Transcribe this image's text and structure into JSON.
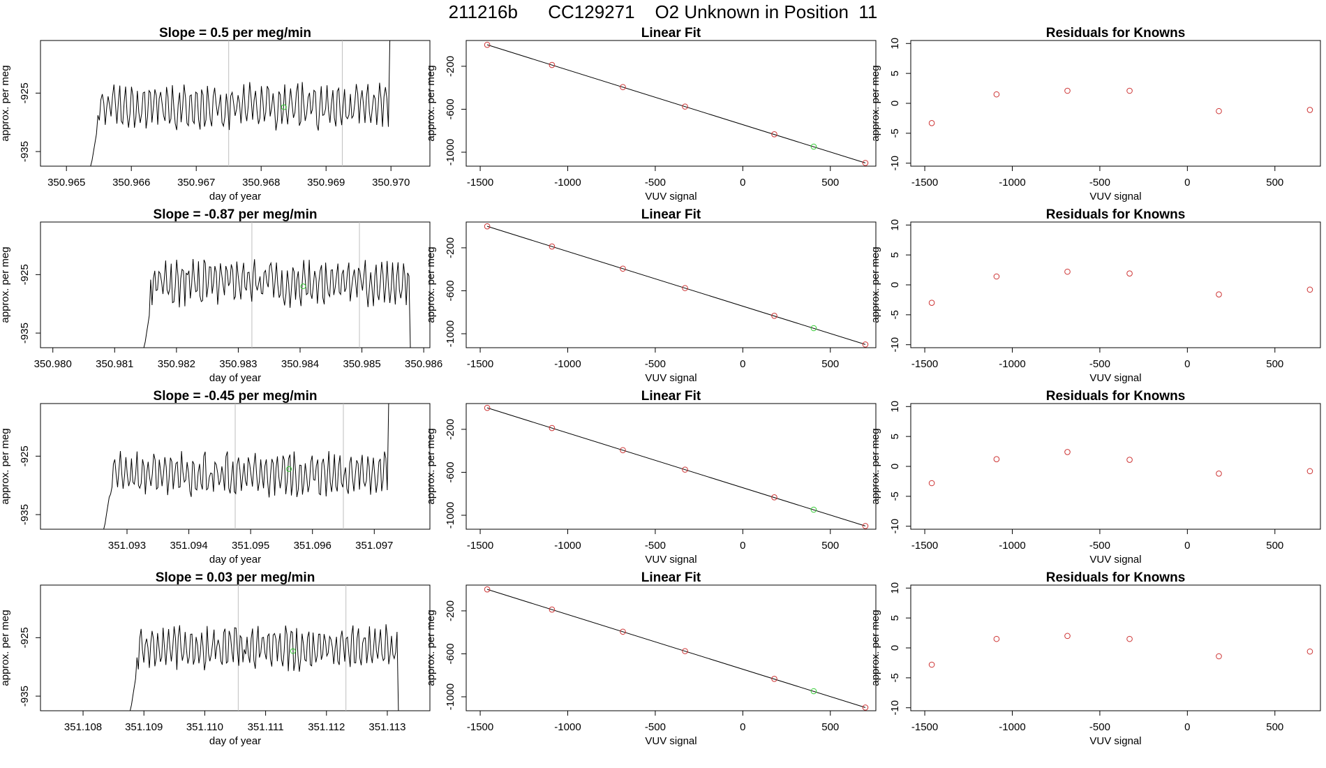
{
  "figure_title": "211216b      CC129271    O2 Unknown in Position  11",
  "colors": {
    "line": "#000000",
    "known_point": "#cd3333",
    "unknown_point": "#33cc33",
    "vline": "#bebebe"
  },
  "chart_data": [
    {
      "type": "line",
      "title": "Slope =  0.5  per meg/min",
      "xlabel": "day of year",
      "ylabel": "approx. per meg",
      "xlim": [
        350.9646,
        350.9706
      ],
      "ylim": [
        -937.5,
        -916
      ],
      "xticks": [
        350.965,
        350.966,
        350.967,
        350.968,
        350.969,
        350.97
      ],
      "xtick_labels": [
        "350.965",
        "350.966",
        "350.967",
        "350.968",
        "350.969",
        "350.970"
      ],
      "yticks": [
        -925,
        -935
      ],
      "ytick_labels": [
        "-925",
        "-935"
      ],
      "vlines": [
        350.9675,
        350.96925
      ],
      "series_start": 350.96535,
      "series_end": 350.97005,
      "series_points": 210,
      "seed": 11,
      "base_level": -927.3,
      "amplitude": 3.2,
      "green_point": [
        350.96835,
        -927.4
      ]
    },
    {
      "type": "scatter",
      "title": "Linear Fit",
      "xlabel": "VUV signal",
      "ylabel": "approx. per meg",
      "xlim": [
        -1580,
        760
      ],
      "ylim": [
        -1130,
        40
      ],
      "xticks": [
        -1500,
        -1000,
        -500,
        0,
        500
      ],
      "xtick_labels": [
        "-1500",
        "-1000",
        "-500",
        "0",
        "500"
      ],
      "yticks": [
        -200,
        -600,
        -1000
      ],
      "ytick_labels": [
        "-200",
        "-600",
        "-1000"
      ],
      "fit_line": [
        [
          -1460,
          0
        ],
        [
          700,
          -1100
        ]
      ],
      "known_points": [
        [
          -1460,
          0
        ],
        [
          -1090,
          -188
        ],
        [
          -685,
          -394
        ],
        [
          -330,
          -575
        ],
        [
          180,
          -833
        ],
        [
          700,
          -1100
        ]
      ],
      "unknown_point": [
        405,
        -948
      ]
    },
    {
      "type": "scatter",
      "title": "Residuals for Knowns",
      "xlabel": "VUV signal",
      "ylabel": "approx. per meg",
      "xlim": [
        -1580,
        760
      ],
      "ylim": [
        -10.5,
        10.5
      ],
      "xticks": [
        -1500,
        -1000,
        -500,
        0,
        500
      ],
      "xtick_labels": [
        "-1500",
        "-1000",
        "-500",
        "0",
        "500"
      ],
      "yticks": [
        10,
        5,
        0,
        -5,
        -10
      ],
      "ytick_labels": [
        "10",
        "5",
        "0",
        "-5",
        "-10"
      ],
      "points": [
        [
          -1460,
          -3.3
        ],
        [
          -1090,
          1.5
        ],
        [
          -685,
          2.1
        ],
        [
          -330,
          2.1
        ],
        [
          180,
          -1.3
        ],
        [
          700,
          -1.1
        ]
      ]
    },
    {
      "type": "line",
      "title": "Slope =  -0.87  per meg/min",
      "xlabel": "day of year",
      "ylabel": "approx. per meg",
      "xlim": [
        350.9798,
        350.9861
      ],
      "ylim": [
        -937.5,
        -916
      ],
      "xticks": [
        350.98,
        350.981,
        350.982,
        350.983,
        350.984,
        350.985,
        350.986
      ],
      "xtick_labels": [
        "350.980",
        "350.981",
        "350.982",
        "350.983",
        "350.984",
        "350.985",
        "350.986"
      ],
      "yticks": [
        -925,
        -935
      ],
      "ytick_labels": [
        "-925",
        "-935"
      ],
      "vlines": [
        350.98322,
        350.98496
      ],
      "series_start": 350.98145,
      "series_end": 350.98585,
      "series_points": 200,
      "seed": 23,
      "base_level": -926.5,
      "amplitude": 3.2,
      "green_point": [
        350.98405,
        -927.0
      ]
    },
    {
      "type": "scatter",
      "title": "Linear Fit",
      "xlabel": "VUV signal",
      "ylabel": "approx. per meg",
      "xlim": [
        -1580,
        760
      ],
      "ylim": [
        -1130,
        40
      ],
      "xticks": [
        -1500,
        -1000,
        -500,
        0,
        500
      ],
      "xtick_labels": [
        "-1500",
        "-1000",
        "-500",
        "0",
        "500"
      ],
      "yticks": [
        -200,
        -600,
        -1000
      ],
      "ytick_labels": [
        "-200",
        "-600",
        "-1000"
      ],
      "fit_line": [
        [
          -1460,
          0
        ],
        [
          700,
          -1100
        ]
      ],
      "known_points": [
        [
          -1460,
          0
        ],
        [
          -1090,
          -188
        ],
        [
          -685,
          -394
        ],
        [
          -330,
          -575
        ],
        [
          180,
          -833
        ],
        [
          700,
          -1100
        ]
      ],
      "unknown_point": [
        405,
        -948
      ]
    },
    {
      "type": "scatter",
      "title": "Residuals for Knowns",
      "xlabel": "VUV signal",
      "ylabel": "approx. per meg",
      "xlim": [
        -1580,
        760
      ],
      "ylim": [
        -10.5,
        10.5
      ],
      "xticks": [
        -1500,
        -1000,
        -500,
        0,
        500
      ],
      "xtick_labels": [
        "-1500",
        "-1000",
        "-500",
        "0",
        "500"
      ],
      "yticks": [
        10,
        5,
        0,
        -5,
        -10
      ],
      "ytick_labels": [
        "10",
        "5",
        "0",
        "-5",
        "-10"
      ],
      "points": [
        [
          -1460,
          -3.0
        ],
        [
          -1090,
          1.4
        ],
        [
          -685,
          2.2
        ],
        [
          -330,
          1.9
        ],
        [
          180,
          -1.6
        ],
        [
          700,
          -0.8
        ]
      ]
    },
    {
      "type": "line",
      "title": "Slope =  -0.45  per meg/min",
      "xlabel": "day of year",
      "ylabel": "approx. per meg",
      "xlim": [
        351.0916,
        351.0979
      ],
      "ylim": [
        -937.5,
        -916
      ],
      "xticks": [
        351.093,
        351.094,
        351.095,
        351.096,
        351.097
      ],
      "xtick_labels": [
        "351.093",
        "351.094",
        "351.095",
        "351.096",
        "351.097"
      ],
      "yticks": [
        -925,
        -935
      ],
      "ytick_labels": [
        "-925",
        "-935"
      ],
      "vlines": [
        351.09475,
        351.0965
      ],
      "series_start": 351.0926,
      "series_end": 351.0973,
      "series_points": 210,
      "seed": 37,
      "base_level": -928.2,
      "amplitude": 3.0,
      "green_point": [
        351.09562,
        -927.2
      ]
    },
    {
      "type": "scatter",
      "title": "Linear Fit",
      "xlabel": "VUV signal",
      "ylabel": "approx. per meg",
      "xlim": [
        -1580,
        760
      ],
      "ylim": [
        -1130,
        40
      ],
      "xticks": [
        -1500,
        -1000,
        -500,
        0,
        500
      ],
      "xtick_labels": [
        "-1500",
        "-1000",
        "-500",
        "0",
        "500"
      ],
      "yticks": [
        -200,
        -600,
        -1000
      ],
      "ytick_labels": [
        "-200",
        "-600",
        "-1000"
      ],
      "fit_line": [
        [
          -1460,
          0
        ],
        [
          700,
          -1100
        ]
      ],
      "known_points": [
        [
          -1460,
          0
        ],
        [
          -1090,
          -188
        ],
        [
          -685,
          -394
        ],
        [
          -330,
          -575
        ],
        [
          180,
          -833
        ],
        [
          700,
          -1100
        ]
      ],
      "unknown_point": [
        405,
        -948
      ]
    },
    {
      "type": "scatter",
      "title": "Residuals for Knowns",
      "xlabel": "VUV signal",
      "ylabel": "approx. per meg",
      "xlim": [
        -1580,
        760
      ],
      "ylim": [
        -10.5,
        10.5
      ],
      "xticks": [
        -1500,
        -1000,
        -500,
        0,
        500
      ],
      "xtick_labels": [
        "-1500",
        "-1000",
        "-500",
        "0",
        "500"
      ],
      "yticks": [
        10,
        5,
        0,
        -5,
        -10
      ],
      "ytick_labels": [
        "10",
        "5",
        "0",
        "-5",
        "-10"
      ],
      "points": [
        [
          -1460,
          -2.8
        ],
        [
          -1090,
          1.2
        ],
        [
          -685,
          2.4
        ],
        [
          -330,
          1.1
        ],
        [
          180,
          -1.2
        ],
        [
          700,
          -0.8
        ]
      ]
    },
    {
      "type": "line",
      "title": "Slope =  0.03  per meg/min",
      "xlabel": "day of year",
      "ylabel": "approx. per meg",
      "xlim": [
        351.1073,
        351.1137
      ],
      "ylim": [
        -937.5,
        -916
      ],
      "xticks": [
        351.108,
        351.109,
        351.11,
        351.111,
        351.112,
        351.113
      ],
      "xtick_labels": [
        "351.108",
        "351.109",
        "351.110",
        "351.111",
        "351.112",
        "351.113"
      ],
      "yticks": [
        -925,
        -935
      ],
      "ytick_labels": [
        "-925",
        "-935"
      ],
      "vlines": [
        351.11055,
        351.11232
      ],
      "series_start": 351.10875,
      "series_end": 351.11325,
      "series_points": 200,
      "seed": 53,
      "base_level": -926.8,
      "amplitude": 3.0,
      "green_point": [
        351.11145,
        -927.3
      ]
    },
    {
      "type": "scatter",
      "title": "Linear Fit",
      "xlabel": "VUV signal",
      "ylabel": "approx. per meg",
      "xlim": [
        -1580,
        760
      ],
      "ylim": [
        -1130,
        40
      ],
      "xticks": [
        -1500,
        -1000,
        -500,
        0,
        500
      ],
      "xtick_labels": [
        "-1500",
        "-1000",
        "-500",
        "0",
        "500"
      ],
      "yticks": [
        -200,
        -600,
        -1000
      ],
      "ytick_labels": [
        "-200",
        "-600",
        "-1000"
      ],
      "fit_line": [
        [
          -1460,
          0
        ],
        [
          700,
          -1100
        ]
      ],
      "known_points": [
        [
          -1460,
          0
        ],
        [
          -1090,
          -188
        ],
        [
          -685,
          -394
        ],
        [
          -330,
          -575
        ],
        [
          180,
          -833
        ],
        [
          700,
          -1100
        ]
      ],
      "unknown_point": [
        405,
        -948
      ]
    },
    {
      "type": "scatter",
      "title": "Residuals for Knowns",
      "xlabel": "VUV signal",
      "ylabel": "approx. per meg",
      "xlim": [
        -1580,
        760
      ],
      "ylim": [
        -10.5,
        10.5
      ],
      "xticks": [
        -1500,
        -1000,
        -500,
        0,
        500
      ],
      "xtick_labels": [
        "-1500",
        "-1000",
        "-500",
        "0",
        "500"
      ],
      "yticks": [
        10,
        5,
        0,
        -5,
        -10
      ],
      "ytick_labels": [
        "10",
        "5",
        "0",
        "-5",
        "-10"
      ],
      "points": [
        [
          -1460,
          -2.8
        ],
        [
          -1090,
          1.5
        ],
        [
          -685,
          2.0
        ],
        [
          -330,
          1.5
        ],
        [
          180,
          -1.4
        ],
        [
          700,
          -0.6
        ]
      ]
    }
  ]
}
